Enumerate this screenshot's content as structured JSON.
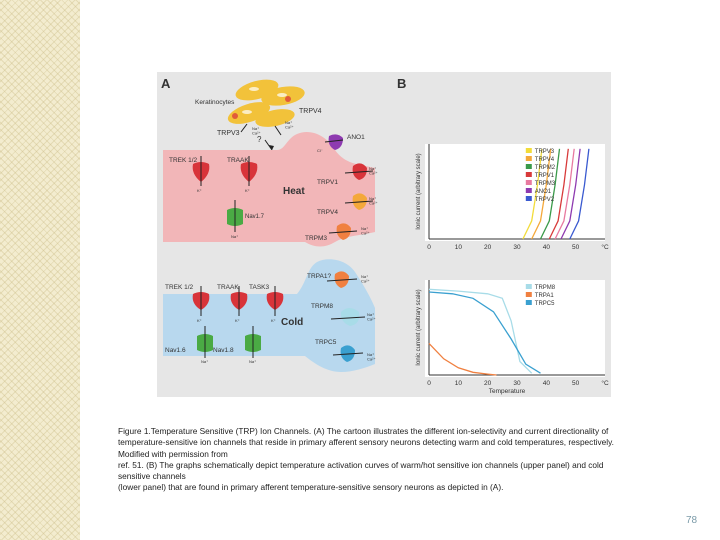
{
  "panel_a": {
    "label": "A",
    "keratinocytes": "Keratinocytes",
    "trpv4_top": "TRPV4",
    "trpv3_top": "TRPV3",
    "ion_top_mid": "Na⁺\nCa²⁺",
    "ion_top_right": "Na⁺\nCa²⁺",
    "question": "?",
    "heat": {
      "title": "Heat",
      "trek": "TREK 1/2",
      "traak": "TRAAK",
      "k1": "K⁺",
      "k2": "K⁺",
      "nav7": "Nav1.7",
      "na_nav7": "Na⁺",
      "ano1": "ANO1",
      "cl": "Cl⁻",
      "trpv1": "TRPV1",
      "trpv1_ions": "Na⁺\nCa²⁺",
      "trpv4": "TRPV4",
      "trpv4_ions": "Na⁺\nCa²⁺",
      "trpm3": "TRPM3",
      "trpm3_ions": "Na⁺\nCa²⁺"
    },
    "cold": {
      "title": "Cold",
      "trek": "TREK 1/2",
      "traak": "TRAAK",
      "task3": "TASK3",
      "k1": "K⁺",
      "k2": "K⁺",
      "k3": "K⁺",
      "trpa1": "TRPA1?",
      "trpa1_ions": "Na⁺\nCa²⁺",
      "trpm8": "TRPM8",
      "trpm8_ions": "Na⁺\nCa²⁺",
      "trpc5": "TRPC5",
      "trpc5_ions": "Na⁺\nCa²⁺",
      "nav16": "Nav1.6",
      "nav18": "Nav1.8",
      "na1": "Na⁺",
      "na2": "Na⁺"
    }
  },
  "chart_data": [
    {
      "type": "line",
      "panel": "B",
      "title": "",
      "xlabel": "",
      "ylabel": "Ionic current (arbitrary scale)",
      "x_ticks": [
        "0",
        "10",
        "20",
        "30",
        "40",
        "50",
        "°C"
      ],
      "xlim": [
        0,
        60
      ],
      "legend_position": "top-right",
      "series": [
        {
          "name": "TRPV3",
          "color": "#f2dc3a",
          "x": [
            32,
            35,
            37,
            38.5
          ],
          "y": [
            0.0,
            0.2,
            0.6,
            1.0
          ]
        },
        {
          "name": "TRPV4",
          "color": "#f4a83a",
          "x": [
            35,
            38,
            40,
            41.5
          ],
          "y": [
            0.0,
            0.2,
            0.6,
            1.0
          ]
        },
        {
          "name": "TRPM2",
          "color": "#3a9a4a",
          "x": [
            38,
            41,
            43,
            44.5
          ],
          "y": [
            0.0,
            0.2,
            0.6,
            1.0
          ]
        },
        {
          "name": "TRPV1",
          "color": "#d83a3a",
          "x": [
            41,
            44,
            46,
            47.5
          ],
          "y": [
            0.0,
            0.2,
            0.6,
            1.0
          ]
        },
        {
          "name": "TRPM3",
          "color": "#e87aa0",
          "x": [
            43,
            46,
            48,
            49.5
          ],
          "y": [
            0.0,
            0.2,
            0.6,
            1.0
          ]
        },
        {
          "name": "ANO1",
          "color": "#8e3ab0",
          "x": [
            45,
            48,
            50,
            51.5
          ],
          "y": [
            0.0,
            0.2,
            0.6,
            1.0
          ]
        },
        {
          "name": "TRPV2",
          "color": "#3a5ad0",
          "x": [
            48,
            51,
            53,
            54.5
          ],
          "y": [
            0.0,
            0.2,
            0.6,
            1.0
          ]
        }
      ]
    },
    {
      "type": "line",
      "panel": "",
      "title": "",
      "xlabel": "Temperature",
      "ylabel": "Ionic current (arbitrary scale)",
      "x_ticks": [
        "0",
        "10",
        "20",
        "30",
        "40",
        "50",
        "°C"
      ],
      "xlim": [
        0,
        60
      ],
      "legend_position": "top-right",
      "series": [
        {
          "name": "TRPM8",
          "color": "#a8dce8",
          "x": [
            0,
            10,
            20,
            25,
            28,
            31,
            35
          ],
          "y": [
            0.95,
            0.93,
            0.9,
            0.85,
            0.6,
            0.15,
            0.02
          ]
        },
        {
          "name": "TRPA1",
          "color": "#f08040",
          "x": [
            0,
            5,
            10,
            15,
            20,
            23
          ],
          "y": [
            0.35,
            0.18,
            0.08,
            0.03,
            0.01,
            0.0
          ]
        },
        {
          "name": "TRPC5",
          "color": "#3aa0d0",
          "x": [
            0,
            8,
            15,
            22,
            28,
            33,
            38
          ],
          "y": [
            0.92,
            0.9,
            0.85,
            0.7,
            0.4,
            0.12,
            0.02
          ]
        }
      ]
    }
  ],
  "caption": {
    "lines": [
      "Figure 1.Temperature Sensitive (TRP) Ion Channels. (A) The cartoon illustrates the different ion-selectivity and current directionality of",
      "temperature-sensitive ion channels that reside in primary afferent sensory neurons detecting warm and cold temperatures, respectively.",
      "Modified with permission from",
      "ref. 51. (B) The graphs schematically depict temperature activation curves of warm/hot sensitive ion channels (upper panel) and cold",
      "sensitive channels",
      "(lower panel) that are found in primary afferent temperature-sensitive sensory neurons as depicted in (A)."
    ]
  },
  "page_number": "78",
  "colors": {
    "heat_cell": "#f2b6b8",
    "cold_cell": "#b8d8ee",
    "figure_bg": "#e6e6e6",
    "keratinocyte": "#f2c23a"
  }
}
